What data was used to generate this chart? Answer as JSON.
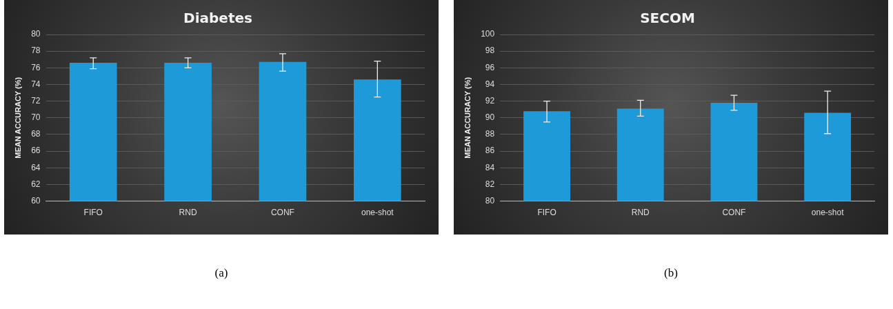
{
  "chart_data": [
    {
      "type": "bar",
      "title": "Diabetes",
      "ylabel": "MEAN ACCURACY (%)",
      "categories": [
        "FIFO",
        "RND",
        "CONF",
        "one-shot"
      ],
      "values": [
        76.6,
        76.6,
        76.7,
        74.6
      ],
      "errors": [
        [
          75.9,
          77.2
        ],
        [
          76.0,
          77.2
        ],
        [
          75.6,
          77.7
        ],
        [
          72.5,
          76.8
        ]
      ],
      "color": "#1f9ad9",
      "ylim": [
        60,
        80
      ],
      "yticks": [
        60,
        62,
        64,
        66,
        68,
        70,
        72,
        74,
        76,
        78,
        80
      ],
      "grid": "y",
      "annotations": [
        "(a)"
      ]
    },
    {
      "type": "bar",
      "title": "SECOM",
      "ylabel": "MEAN ACCURACY (%)",
      "categories": [
        "FIFO",
        "RND",
        "CONF",
        "one-shot"
      ],
      "values": [
        90.8,
        91.1,
        91.8,
        90.6
      ],
      "errors": [
        [
          89.5,
          92.0
        ],
        [
          90.2,
          92.1
        ],
        [
          90.9,
          92.7
        ],
        [
          88.1,
          93.2
        ]
      ],
      "color": "#1f9ad9",
      "ylim": [
        80,
        100
      ],
      "yticks": [
        80,
        82,
        84,
        86,
        88,
        90,
        92,
        94,
        96,
        98,
        100
      ],
      "grid": "y",
      "annotations": [
        "(b)"
      ]
    }
  ]
}
